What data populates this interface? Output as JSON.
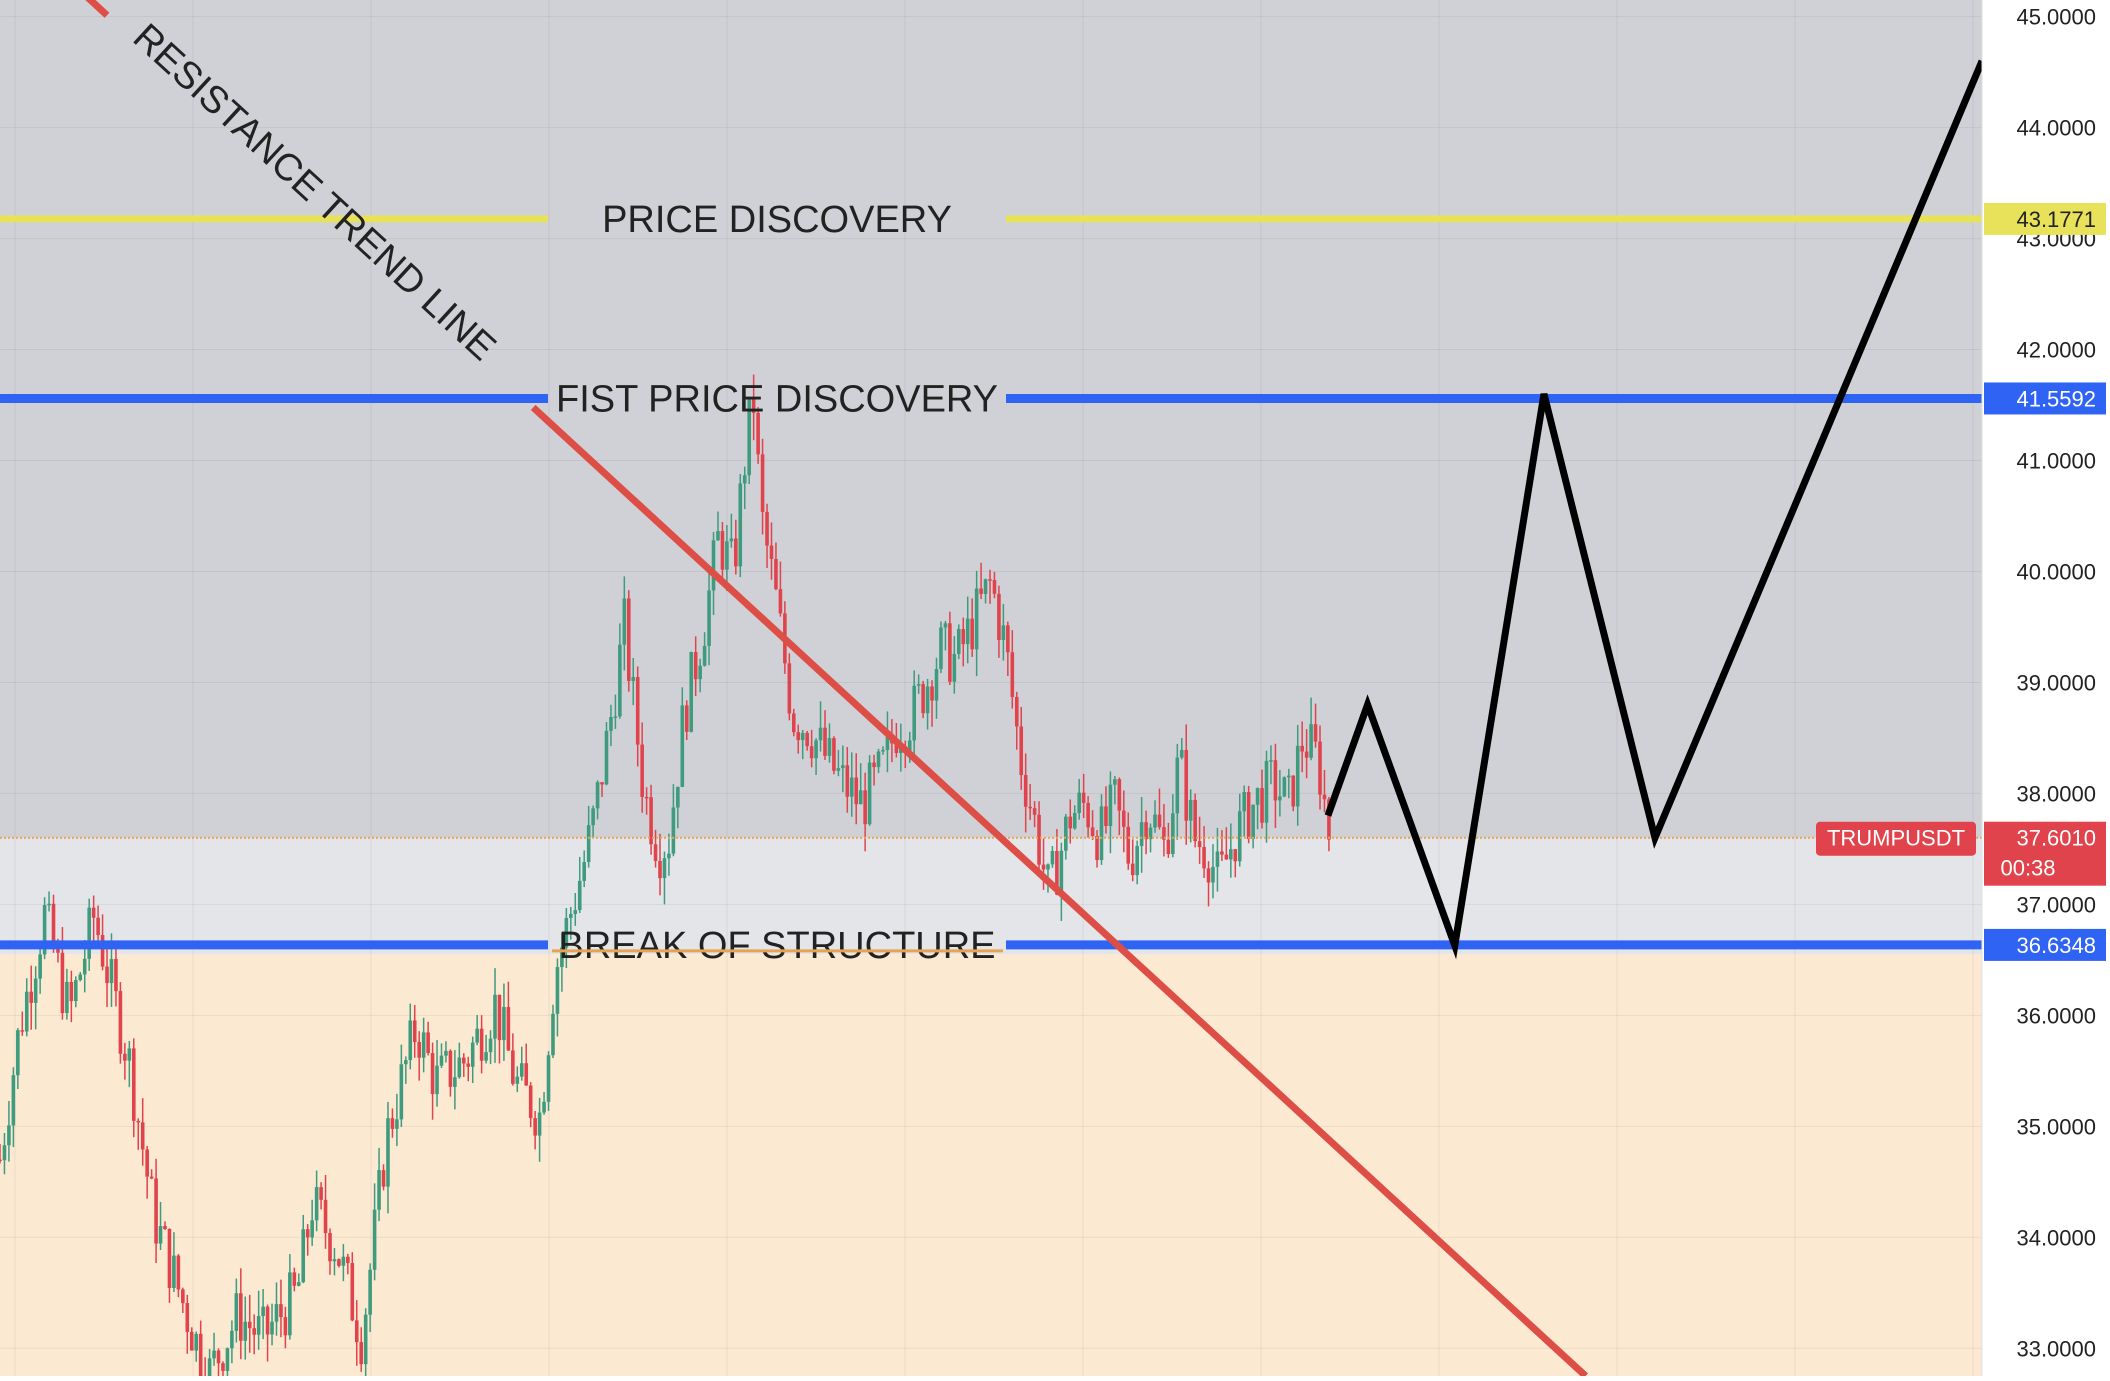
{
  "colors": {
    "bull": "#3e9b7e",
    "bear": "#e0434b",
    "zone_top": "#d0d1d6",
    "zone_mid": "#e4e5e8",
    "zone_bottom": "#fce9d2",
    "resistance_line": "#dd4e47",
    "level_blue": "#2f63f4",
    "level_yellow": "#e8e15a",
    "projection": "#000000",
    "orange_line": "#e8a34f",
    "symbol_badge": "#e0434b"
  },
  "chart_data": {
    "type": "candlestick",
    "symbol": "TRUMPUSDT",
    "last_price": "37.6010",
    "countdown": "00:38",
    "ylim": [
      32.75,
      45.15
    ],
    "y_ticks": [
      "33.0000",
      "34.0000",
      "35.0000",
      "36.0000",
      "37.0000",
      "38.0000",
      "39.0000",
      "40.0000",
      "41.0000",
      "42.0000",
      "43.0000",
      "44.0000",
      "45.0000"
    ],
    "y_tick_values": [
      33,
      34,
      35,
      36,
      37,
      38,
      39,
      40,
      41,
      42,
      43,
      44,
      45
    ],
    "levels": [
      {
        "name": "price-discovery",
        "label": "PRICE DISCOVERY",
        "value": 43.1771,
        "price_label": "43.1771",
        "color": "#e8e15a"
      },
      {
        "name": "fist-price-discovery",
        "label": "FIST PRICE DISCOVERY",
        "value": 41.5592,
        "price_label": "41.5592",
        "color": "#2f63f4"
      },
      {
        "name": "break-of-structure",
        "label": "BREAK OF STRUCTURE",
        "value": 36.6348,
        "price_label": "36.6348",
        "color": "#2f63f4"
      }
    ],
    "zones": [
      {
        "from": 37.6,
        "to": 45.15,
        "color": "#d0d1d6"
      },
      {
        "from": 36.55,
        "to": 37.6,
        "color": "#e4e5e8"
      },
      {
        "from": 32.75,
        "to": 36.55,
        "color": "#fce9d2"
      }
    ],
    "trendline": {
      "label": "RESISTANCE TREND LINE",
      "points": [
        [
          0,
          45.9
        ],
        [
          1600,
          32.75
        ]
      ]
    },
    "projection": [
      [
        1340,
        37.8
      ],
      [
        1380,
        38.8
      ],
      [
        1468,
        36.63
      ],
      [
        1558,
        41.6
      ],
      [
        1670,
        37.6
      ],
      [
        2000,
        44.6
      ]
    ],
    "anchors": [
      [
        0,
        34.7
      ],
      [
        20,
        35.9
      ],
      [
        45,
        36.9
      ],
      [
        70,
        36.0
      ],
      [
        95,
        36.9
      ],
      [
        130,
        35.6
      ],
      [
        155,
        34.2
      ],
      [
        185,
        33.4
      ],
      [
        210,
        32.75
      ],
      [
        240,
        33.3
      ],
      [
        265,
        33.1
      ],
      [
        300,
        33.5
      ],
      [
        315,
        34.3
      ],
      [
        340,
        33.9
      ],
      [
        365,
        33.1
      ],
      [
        390,
        34.9
      ],
      [
        420,
        35.9
      ],
      [
        440,
        35.4
      ],
      [
        470,
        35.6
      ],
      [
        500,
        36.1
      ],
      [
        520,
        35.4
      ],
      [
        545,
        35.1
      ],
      [
        560,
        36.4
      ],
      [
        590,
        37.4
      ],
      [
        600,
        37.8
      ],
      [
        615,
        38.6
      ],
      [
        630,
        39.5
      ],
      [
        650,
        38.0
      ],
      [
        665,
        37.5
      ],
      [
        675,
        37.6
      ],
      [
        690,
        38.7
      ],
      [
        710,
        39.5
      ],
      [
        725,
        40.3
      ],
      [
        740,
        40.0
      ],
      [
        750,
        40.9
      ],
      [
        760,
        41.6
      ],
      [
        768,
        40.5
      ],
      [
        782,
        39.8
      ],
      [
        800,
        38.7
      ],
      [
        815,
        38.6
      ],
      [
        835,
        38.3
      ],
      [
        850,
        38.1
      ],
      [
        870,
        37.9
      ],
      [
        890,
        38.2
      ],
      [
        905,
        38.6
      ],
      [
        920,
        38.7
      ],
      [
        935,
        39.0
      ],
      [
        950,
        39.3
      ],
      [
        965,
        39.2
      ],
      [
        985,
        39.6
      ],
      [
        1000,
        39.9
      ],
      [
        1015,
        39.3
      ],
      [
        1030,
        38.3
      ],
      [
        1045,
        37.7
      ],
      [
        1058,
        37.1
      ],
      [
        1068,
        37.4
      ],
      [
        1080,
        37.8
      ],
      [
        1095,
        37.9
      ],
      [
        1110,
        37.6
      ],
      [
        1125,
        37.9
      ],
      [
        1140,
        37.4
      ],
      [
        1158,
        37.9
      ],
      [
        1175,
        37.5
      ],
      [
        1190,
        38.3
      ],
      [
        1205,
        37.6
      ],
      [
        1218,
        37.5
      ],
      [
        1230,
        37.2
      ],
      [
        1245,
        37.6
      ],
      [
        1265,
        37.9
      ],
      [
        1285,
        38.1
      ],
      [
        1300,
        37.9
      ],
      [
        1315,
        38.5
      ],
      [
        1330,
        38.3
      ],
      [
        1342,
        37.6
      ]
    ]
  }
}
